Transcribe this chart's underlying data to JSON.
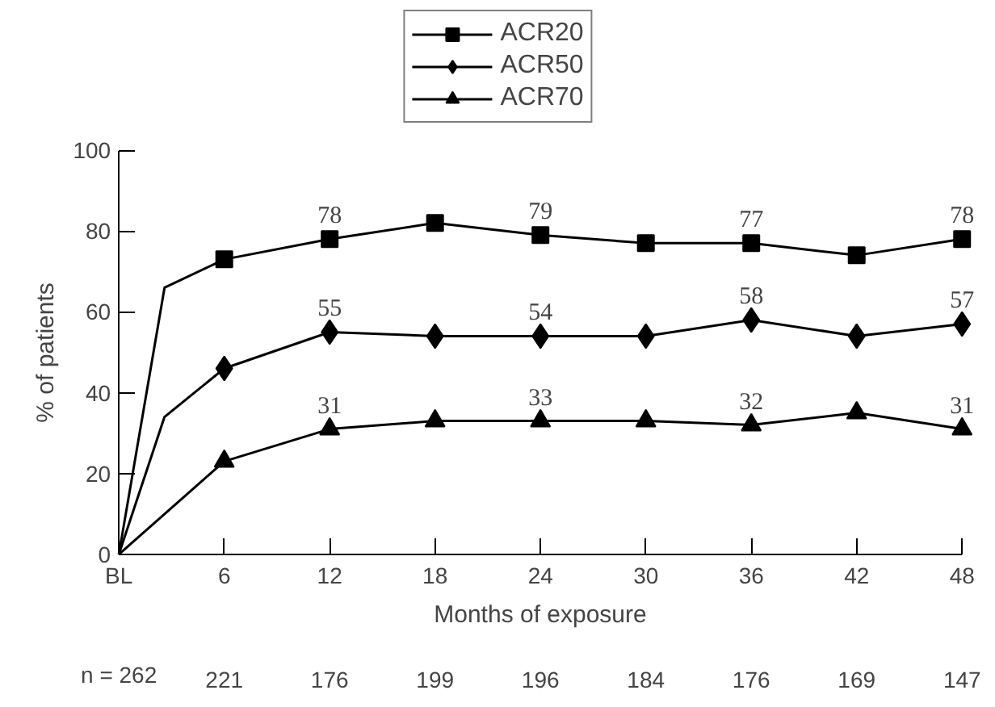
{
  "chart_data": {
    "type": "line",
    "xlabel": "Months of exposure",
    "ylabel": "% of patients",
    "x": [
      6,
      12,
      18,
      24,
      30,
      36,
      42,
      48
    ],
    "series": [
      {
        "name": "ACR20",
        "color": "#000000",
        "marker": "square",
        "values": [
          73,
          78,
          82,
          79,
          77,
          77,
          74,
          78
        ],
        "value_labels": [
          null,
          "78",
          null,
          "79",
          null,
          "77",
          null,
          "78"
        ]
      },
      {
        "name": "ACR50",
        "color": "#000000",
        "marker": "diamond",
        "values": [
          46,
          55,
          54,
          54,
          54,
          58,
          54,
          57
        ],
        "value_labels": [
          null,
          "55",
          null,
          "54",
          null,
          "58",
          null,
          "57"
        ]
      },
      {
        "name": "ACR70",
        "color": "#000000",
        "marker": "triangle",
        "values": [
          23,
          31,
          33,
          33,
          33,
          32,
          35,
          31
        ],
        "value_labels": [
          null,
          "31",
          null,
          "33",
          null,
          "32",
          null,
          "31"
        ]
      },
      {
        "color": "#000000",
        "marker": "none",
        "x": [
          0,
          2.6,
          6
        ],
        "values": [
          0,
          66,
          73
        ]
      },
      {
        "color": "#000000",
        "marker": "none",
        "x": [
          0,
          2.6,
          6
        ],
        "values": [
          0,
          34,
          46
        ]
      },
      {
        "color": "#000000",
        "marker": "none",
        "x": [
          0,
          6
        ],
        "values": [
          0,
          23
        ]
      }
    ],
    "xlim": [
      0,
      48
    ],
    "xticks": [
      {
        "value": 0,
        "label": "BL"
      },
      6,
      12,
      18,
      24,
      30,
      36,
      42,
      48
    ],
    "ylim": [
      0,
      100
    ],
    "yticks": [
      0,
      20,
      40,
      60,
      80,
      100
    ],
    "grid": false,
    "legend": "top",
    "line_style": "solid",
    "annotations": [
      "n = 262",
      "221",
      "176",
      "199",
      "196",
      "184",
      "176",
      "169",
      "147"
    ]
  }
}
